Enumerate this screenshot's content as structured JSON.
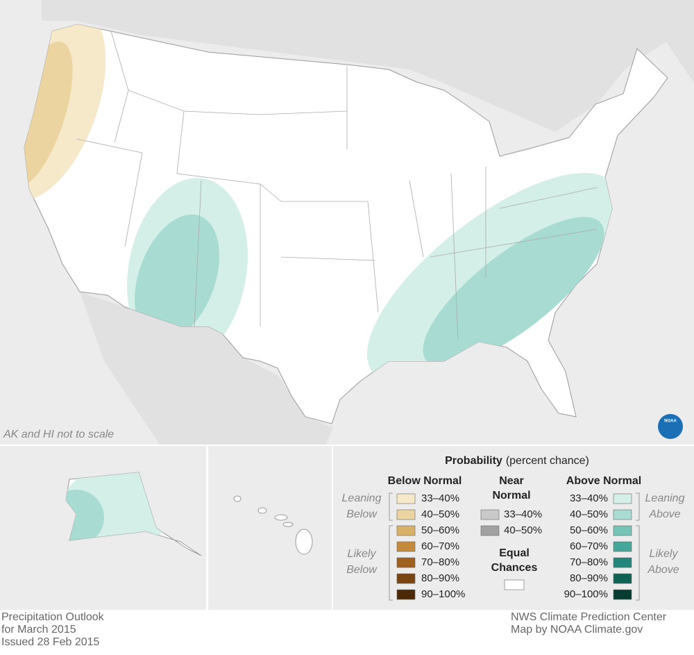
{
  "map": {
    "scale_note": "AK and HI not to scale",
    "logo": "NOAA"
  },
  "legend": {
    "title": "Probability",
    "title_note": "(percent chance)",
    "below": {
      "heading": "Below Normal",
      "leaning": [
        "Leaning",
        "Below"
      ],
      "likely": [
        "Likely",
        "Below"
      ],
      "items": [
        {
          "label": "33–40%",
          "color": "#f5e9c9"
        },
        {
          "label": "40–50%",
          "color": "#ebd4a0"
        },
        {
          "label": "50–60%",
          "color": "#d9b068"
        },
        {
          "label": "60–70%",
          "color": "#c48a3c"
        },
        {
          "label": "70–80%",
          "color": "#a0611f"
        },
        {
          "label": "80–90%",
          "color": "#7a4511"
        },
        {
          "label": "90–100%",
          "color": "#4d2a07"
        }
      ]
    },
    "near": {
      "heading": [
        "Near",
        "Normal"
      ],
      "items": [
        {
          "label": "33–40%",
          "color": "#c9c9c9"
        },
        {
          "label": "40–50%",
          "color": "#a2a2a2"
        }
      ]
    },
    "equal": {
      "heading": [
        "Equal",
        "Chances"
      ],
      "color": "#ffffff"
    },
    "above": {
      "heading": "Above Normal",
      "leaning": [
        "Leaning",
        "Above"
      ],
      "likely": [
        "Likely",
        "Above"
      ],
      "items": [
        {
          "label": "33–40%",
          "color": "#d4eee8"
        },
        {
          "label": "40–50%",
          "color": "#a8dcd2"
        },
        {
          "label": "50–60%",
          "color": "#74c5b5"
        },
        {
          "label": "60–70%",
          "color": "#44a799"
        },
        {
          "label": "70–80%",
          "color": "#23867a"
        },
        {
          "label": "80–90%",
          "color": "#0f6354"
        },
        {
          "label": "90–100%",
          "color": "#063c31"
        }
      ]
    }
  },
  "footer": {
    "left": [
      "Precipitation Outlook",
      "for March 2015",
      "Issued 28 Feb 2015"
    ],
    "right": [
      "NWS Climate Prediction Center",
      "Map by NOAA Climate.gov"
    ]
  }
}
